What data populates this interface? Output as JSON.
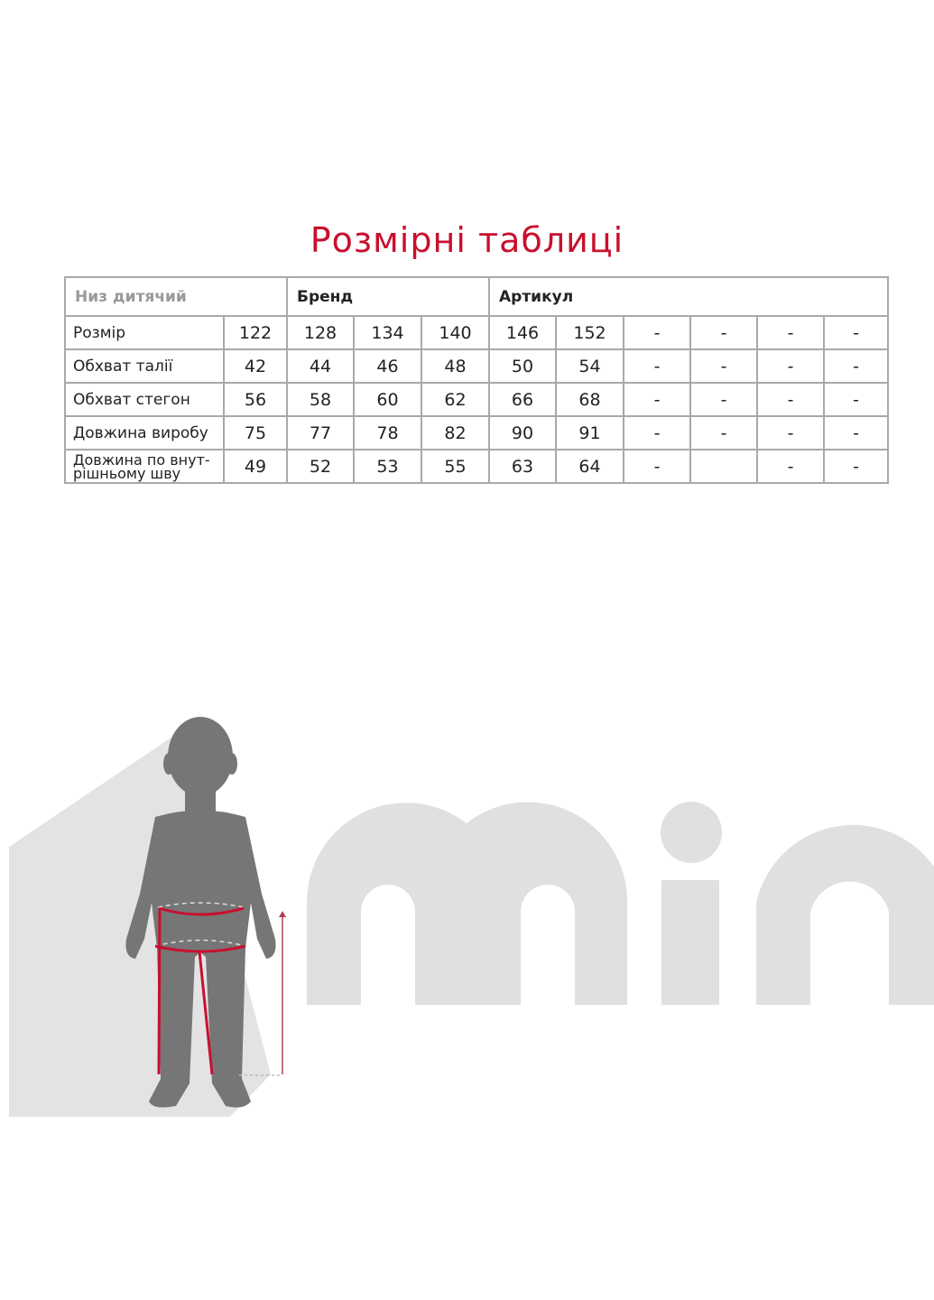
{
  "title": "Розмірні таблиці",
  "table": {
    "category": "Низ дитячий",
    "brand_label": "Бренд",
    "article_label": "Артикул",
    "rows": [
      {
        "label": "Розмір",
        "values": [
          "122",
          "128",
          "134",
          "140",
          "146",
          "152",
          "-",
          "-",
          "-",
          "-"
        ]
      },
      {
        "label": "Обхват талії",
        "values": [
          "42",
          "44",
          "46",
          "48",
          "50",
          "54",
          "-",
          "-",
          "-",
          "-"
        ]
      },
      {
        "label": "Обхват стегон",
        "values": [
          "56",
          "58",
          "60",
          "62",
          "66",
          "68",
          "-",
          "-",
          "-",
          "-"
        ]
      },
      {
        "label": "Довжина виробу",
        "values": [
          "75",
          "77",
          "78",
          "82",
          "90",
          "91",
          "-",
          "-",
          "-",
          "-"
        ]
      },
      {
        "label": "Довжина по внут-рішньому шву",
        "values": [
          "49",
          "52",
          "53",
          "55",
          "63",
          "64",
          "-",
          "",
          "-",
          "-"
        ]
      }
    ]
  },
  "logo": {
    "text": "min",
    "color": "#e0e0e0"
  },
  "colors": {
    "accent": "#c8102e",
    "silhouette": "#767676",
    "background_shape": "#e3e3e3",
    "grid": "#a9a9a9"
  }
}
